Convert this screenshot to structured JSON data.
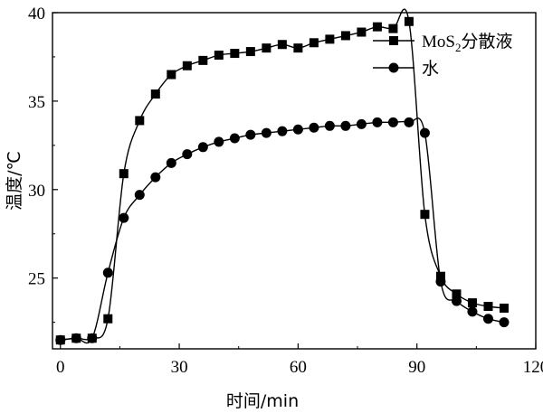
{
  "chart_data": {
    "type": "line",
    "title": "",
    "xlabel": "时间/min",
    "ylabel": "温度/℃",
    "xlim": [
      -2,
      120
    ],
    "ylim": [
      21,
      40
    ],
    "xticks": [
      0,
      30,
      60,
      90,
      120
    ],
    "yticks": [
      25,
      30,
      35,
      40
    ],
    "legend_position": "top-right",
    "series": [
      {
        "name": "MoS",
        "name_sub": "2",
        "name_suffix": "分散液",
        "marker": "square",
        "color": "#000000",
        "x": [
          0,
          4,
          8,
          12,
          16,
          20,
          24,
          28,
          32,
          36,
          40,
          44,
          48,
          52,
          56,
          60,
          64,
          68,
          72,
          76,
          80,
          84,
          88,
          92,
          96,
          100,
          104,
          108,
          112
        ],
        "y": [
          21.5,
          21.6,
          21.6,
          22.7,
          30.9,
          33.9,
          35.4,
          36.5,
          37.0,
          37.3,
          37.6,
          37.7,
          37.8,
          38.0,
          38.2,
          38.0,
          38.3,
          38.5,
          38.7,
          38.9,
          39.2,
          39.1,
          39.5,
          28.6,
          25.1,
          24.1,
          23.6,
          23.4,
          23.3
        ]
      },
      {
        "name": "水",
        "marker": "circle",
        "color": "#000000",
        "x": [
          0,
          4,
          8,
          12,
          16,
          20,
          24,
          28,
          32,
          36,
          40,
          44,
          48,
          52,
          56,
          60,
          64,
          68,
          72,
          76,
          80,
          84,
          88,
          92,
          96,
          100,
          104,
          108,
          112
        ],
        "y": [
          21.5,
          21.6,
          21.6,
          25.3,
          28.4,
          29.7,
          30.7,
          31.5,
          32.0,
          32.4,
          32.7,
          32.9,
          33.1,
          33.2,
          33.3,
          33.4,
          33.5,
          33.6,
          33.6,
          33.7,
          33.8,
          33.8,
          33.8,
          33.2,
          24.8,
          23.7,
          23.1,
          22.7,
          22.5
        ]
      }
    ]
  }
}
